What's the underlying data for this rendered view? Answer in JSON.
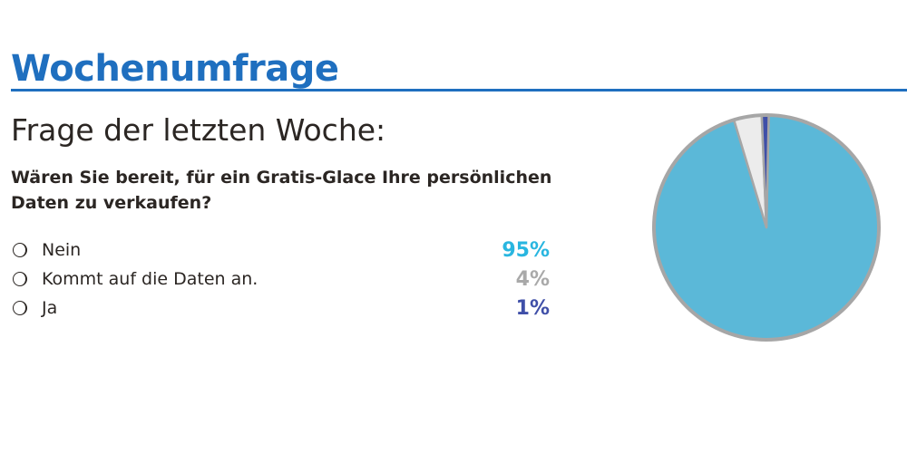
{
  "header": {
    "title": "Wochenumfrage"
  },
  "subtitle": "Frage der letzten Woche:",
  "question": "Wären Sie bereit, für ein Gratis-Glace Ihre persönlichen Daten zu verkaufen?",
  "options": [
    {
      "label": "Nein",
      "value_label": "95%",
      "color": "#29b6e0"
    },
    {
      "label": "Kommt auf die Daten an.",
      "value_label": "4%",
      "color": "#a9a9a9"
    },
    {
      "label": "Ja",
      "value_label": "1%",
      "color": "#3f4fa8"
    }
  ],
  "chart_data": {
    "type": "pie",
    "categories": [
      "Nein",
      "Kommt auf die Daten an.",
      "Ja"
    ],
    "values": [
      95,
      4,
      1
    ],
    "colors": [
      "#5bb8d8",
      "#ececec",
      "#3f4fa8"
    ],
    "edge_color": "#a6a6a6"
  }
}
